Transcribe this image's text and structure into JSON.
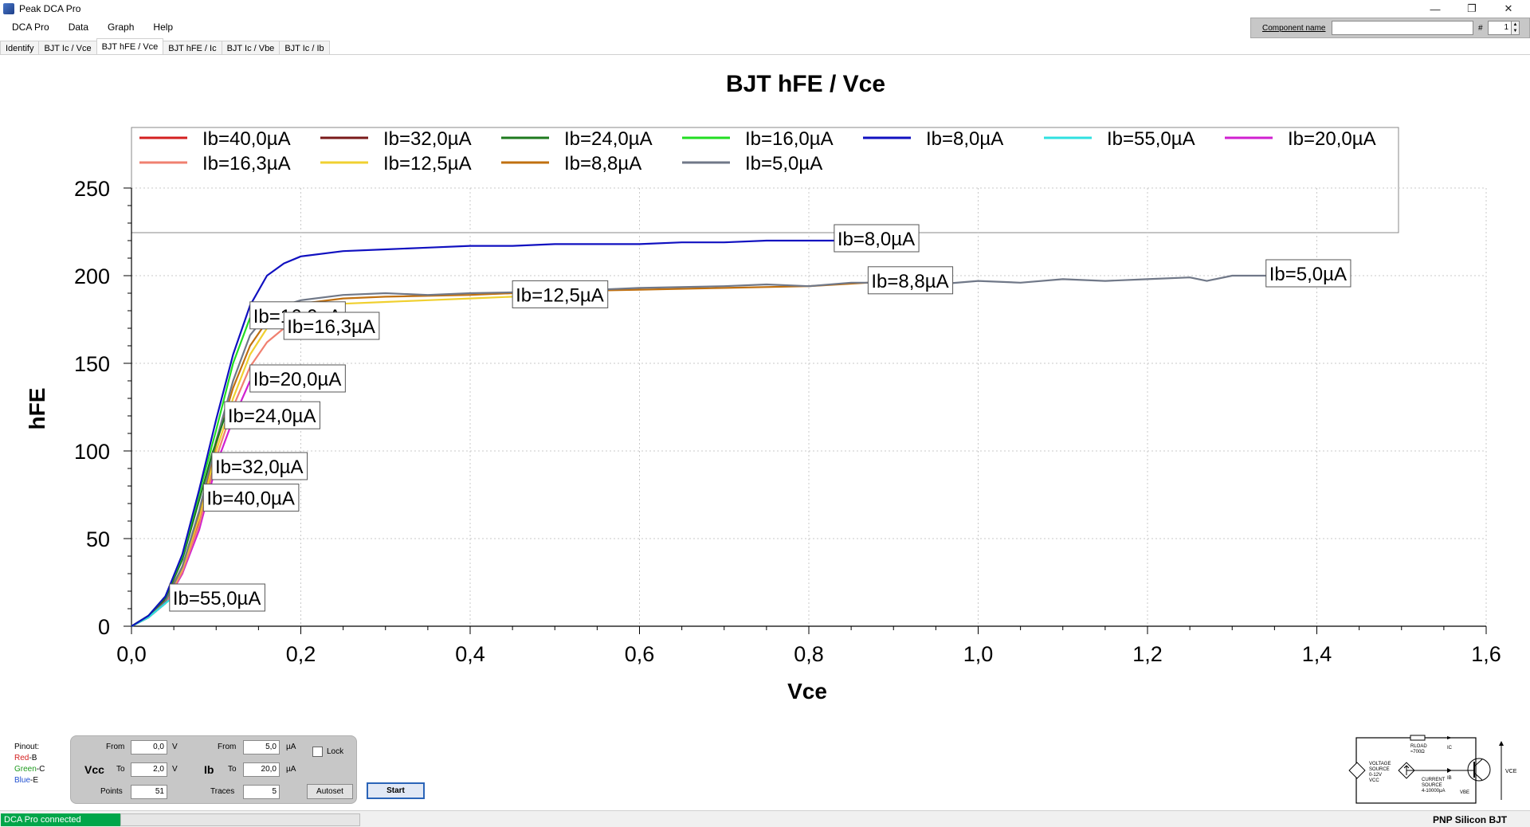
{
  "window": {
    "title": "Peak DCA Pro",
    "minimize_glyph": "—",
    "restore_glyph": "❐",
    "close_glyph": "✕"
  },
  "menu": [
    "DCA Pro",
    "Data",
    "Graph",
    "Help"
  ],
  "tabs": [
    {
      "label": "Identify",
      "active": false
    },
    {
      "label": "BJT Ic / Vce",
      "active": false
    },
    {
      "label": "BJT hFE / Vce",
      "active": true
    },
    {
      "label": "BJT hFE / Ic",
      "active": false
    },
    {
      "label": "BJT Ic / Vbe",
      "active": false
    },
    {
      "label": "BJT Ic / Ib",
      "active": false
    }
  ],
  "component": {
    "label": "Component name",
    "value": "",
    "hash_label": "#",
    "number": "1"
  },
  "chart_data": {
    "type": "line",
    "title": "BJT hFE / Vce",
    "xlabel": "Vce",
    "ylabel": "hFE",
    "xlim": [
      0,
      1.6
    ],
    "ylim": [
      0,
      250
    ],
    "x_ticks": [
      "0,0",
      "0,2",
      "0,4",
      "0,6",
      "0,8",
      "1,0",
      "1,2",
      "1,4",
      "1,6"
    ],
    "y_ticks": [
      "0",
      "50",
      "100",
      "150",
      "200",
      "250"
    ],
    "grid": true,
    "legend_position": "top",
    "series": [
      {
        "name": "Ib=40,0µA",
        "color": "#d42020",
        "label_at": [
          0.085,
          72
        ],
        "points": [
          [
            0,
            0
          ],
          [
            0.02,
            5
          ],
          [
            0.04,
            13
          ],
          [
            0.06,
            30
          ],
          [
            0.07,
            45
          ],
          [
            0.08,
            60
          ],
          [
            0.085,
            72
          ]
        ]
      },
      {
        "name": "Ib=32,0µA",
        "color": "#7a1a1a",
        "label_at": [
          0.095,
          90
        ],
        "points": [
          [
            0,
            0
          ],
          [
            0.02,
            6
          ],
          [
            0.04,
            15
          ],
          [
            0.06,
            34
          ],
          [
            0.08,
            62
          ],
          [
            0.095,
            90
          ]
        ]
      },
      {
        "name": "Ib=24,0µA",
        "color": "#1e7a1e",
        "label_at": [
          0.11,
          119
        ],
        "points": [
          [
            0,
            0
          ],
          [
            0.02,
            6
          ],
          [
            0.04,
            16
          ],
          [
            0.06,
            38
          ],
          [
            0.08,
            72
          ],
          [
            0.095,
            98
          ],
          [
            0.11,
            119
          ]
        ]
      },
      {
        "name": "Ib=16,0µA",
        "color": "#22dd22",
        "label_at": [
          0.14,
          176
        ],
        "points": [
          [
            0,
            0
          ],
          [
            0.02,
            6
          ],
          [
            0.04,
            17
          ],
          [
            0.06,
            40
          ],
          [
            0.08,
            76
          ],
          [
            0.1,
            112
          ],
          [
            0.12,
            150
          ],
          [
            0.14,
            176
          ]
        ]
      },
      {
        "name": "Ib=8,0µA",
        "color": "#1010c0",
        "label_at": [
          0.83,
          220
        ],
        "points": [
          [
            0,
            0
          ],
          [
            0.02,
            6
          ],
          [
            0.04,
            17
          ],
          [
            0.06,
            41
          ],
          [
            0.08,
            78
          ],
          [
            0.1,
            118
          ],
          [
            0.12,
            155
          ],
          [
            0.14,
            183
          ],
          [
            0.16,
            200
          ],
          [
            0.18,
            207
          ],
          [
            0.2,
            211
          ],
          [
            0.25,
            214
          ],
          [
            0.3,
            215
          ],
          [
            0.35,
            216
          ],
          [
            0.4,
            217
          ],
          [
            0.45,
            217
          ],
          [
            0.5,
            218
          ],
          [
            0.55,
            218
          ],
          [
            0.6,
            218
          ],
          [
            0.65,
            219
          ],
          [
            0.7,
            219
          ],
          [
            0.75,
            220
          ],
          [
            0.8,
            220
          ],
          [
            0.83,
            220
          ]
        ]
      },
      {
        "name": "Ib=55,0µA",
        "color": "#30e0e0",
        "label_at": [
          0.045,
          15
        ],
        "points": [
          [
            0,
            0
          ],
          [
            0.02,
            5
          ],
          [
            0.035,
            11
          ],
          [
            0.045,
            15
          ]
        ]
      },
      {
        "name": "Ib=20,0µA",
        "color": "#d020d0",
        "label_at": [
          0.14,
          140
        ],
        "points": [
          [
            0,
            0
          ],
          [
            0.02,
            5
          ],
          [
            0.04,
            13
          ],
          [
            0.06,
            30
          ],
          [
            0.08,
            55
          ],
          [
            0.1,
            92
          ],
          [
            0.12,
            118
          ],
          [
            0.14,
            140
          ]
        ]
      },
      {
        "name": "Ib=16,3µA",
        "color": "#f08070",
        "label_at": [
          0.18,
          170
        ],
        "points": [
          [
            0,
            0
          ],
          [
            0.02,
            5
          ],
          [
            0.04,
            13
          ],
          [
            0.06,
            31
          ],
          [
            0.08,
            58
          ],
          [
            0.1,
            96
          ],
          [
            0.12,
            125
          ],
          [
            0.14,
            148
          ],
          [
            0.16,
            162
          ],
          [
            0.18,
            170
          ]
        ]
      },
      {
        "name": "Ib=12,5µA",
        "color": "#f0d030",
        "label_at": [
          0.45,
          188
        ],
        "points": [
          [
            0,
            0
          ],
          [
            0.02,
            5
          ],
          [
            0.04,
            14
          ],
          [
            0.06,
            33
          ],
          [
            0.08,
            62
          ],
          [
            0.1,
            100
          ],
          [
            0.12,
            130
          ],
          [
            0.14,
            155
          ],
          [
            0.16,
            170
          ],
          [
            0.18,
            177
          ],
          [
            0.2,
            181
          ],
          [
            0.25,
            184
          ],
          [
            0.3,
            185
          ],
          [
            0.35,
            186
          ],
          [
            0.4,
            187
          ],
          [
            0.45,
            188
          ]
        ]
      },
      {
        "name": "Ib=8,8µA",
        "color": "#c07010",
        "label_at": [
          0.87,
          196
        ],
        "points": [
          [
            0,
            0
          ],
          [
            0.02,
            5
          ],
          [
            0.04,
            14
          ],
          [
            0.06,
            34
          ],
          [
            0.08,
            65
          ],
          [
            0.1,
            104
          ],
          [
            0.12,
            136
          ],
          [
            0.14,
            160
          ],
          [
            0.16,
            174
          ],
          [
            0.18,
            181
          ],
          [
            0.2,
            184
          ],
          [
            0.25,
            187
          ],
          [
            0.3,
            188
          ],
          [
            0.4,
            189
          ],
          [
            0.5,
            191
          ],
          [
            0.6,
            192
          ],
          [
            0.7,
            193
          ],
          [
            0.8,
            194
          ],
          [
            0.87,
            196
          ]
        ]
      },
      {
        "name": "Ib=5,0µA",
        "color": "#707888",
        "label_at": [
          1.34,
          200
        ],
        "points": [
          [
            0,
            0
          ],
          [
            0.02,
            5
          ],
          [
            0.04,
            14
          ],
          [
            0.06,
            34
          ],
          [
            0.08,
            66
          ],
          [
            0.1,
            106
          ],
          [
            0.12,
            140
          ],
          [
            0.14,
            166
          ],
          [
            0.16,
            178
          ],
          [
            0.18,
            183
          ],
          [
            0.2,
            186
          ],
          [
            0.25,
            189
          ],
          [
            0.3,
            190
          ],
          [
            0.35,
            189
          ],
          [
            0.4,
            190
          ],
          [
            0.5,
            191
          ],
          [
            0.6,
            193
          ],
          [
            0.7,
            194
          ],
          [
            0.75,
            195
          ],
          [
            0.8,
            194
          ],
          [
            0.85,
            196
          ],
          [
            0.9,
            196
          ],
          [
            0.95,
            195
          ],
          [
            1.0,
            197
          ],
          [
            1.05,
            196
          ],
          [
            1.1,
            198
          ],
          [
            1.15,
            197
          ],
          [
            1.2,
            198
          ],
          [
            1.25,
            199
          ],
          [
            1.27,
            197
          ],
          [
            1.3,
            200
          ],
          [
            1.34,
            200
          ]
        ]
      }
    ],
    "legend_order": [
      "Ib=40,0µA",
      "Ib=32,0µA",
      "Ib=24,0µA",
      "Ib=16,0µA",
      "Ib=8,0µA",
      "Ib=55,0µA",
      "Ib=20,0µA",
      "Ib=16,3µA",
      "Ib=12,5µA",
      "Ib=8,8µA",
      "Ib=5,0µA"
    ]
  },
  "pinout": {
    "title": "Pinout:",
    "b_color_name": "Red",
    "b_pin": "-B",
    "b_color": "#d42020",
    "c_color_name": "Green",
    "c_pin": "-C",
    "c_color": "#1e9a1e",
    "e_color_name": "Blue",
    "e_pin": "-E",
    "e_color": "#2050d0"
  },
  "controls": {
    "vcc_label": "Vcc",
    "ib_label": "Ib",
    "from_label": "From",
    "to_label": "To",
    "points_label": "Points",
    "traces_label": "Traces",
    "vcc_from": "0,0",
    "vcc_to": "2,0",
    "vcc_unit": "V",
    "points": "51",
    "ib_from": "5,0",
    "ib_to": "20,0",
    "ib_unit": "µA",
    "traces": "5",
    "lock_label": "Lock",
    "autoset_label": "Autoset",
    "start_label": "Start"
  },
  "circuit": {
    "rload": "RLOAD",
    "rload_val": "≈700Ω",
    "ic": "IC",
    "ib": "IB",
    "vbe": "VBE",
    "vce": "VCE",
    "vsource": "VOLTAGE",
    "vsource2": "SOURCE",
    "vsource3": "0-12V",
    "vsource4": "VCC",
    "isource": "CURRENT",
    "isource2": "SOURCE",
    "isource3": "4-10000µA"
  },
  "status": {
    "connected": "DCA Pro connected",
    "right": "PNP Silicon BJT"
  }
}
